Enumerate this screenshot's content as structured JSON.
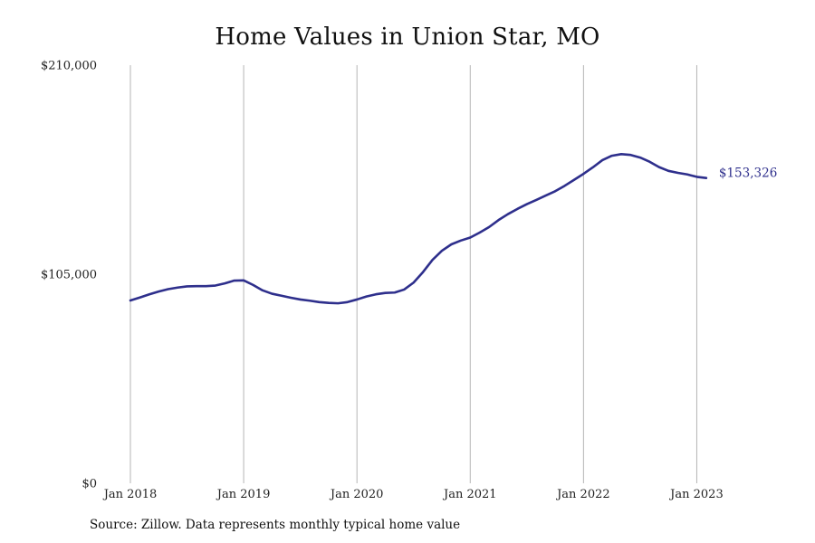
{
  "chart_data": {
    "type": "line",
    "title": "Home Values in Union Star, MO",
    "xlabel": "",
    "ylabel": "",
    "x_tick_labels": [
      "Jan 2018",
      "Jan 2019",
      "Jan 2020",
      "Jan 2021",
      "Jan 2022",
      "Jan 2023"
    ],
    "x_ticks": [
      "2018-01",
      "2019-01",
      "2020-01",
      "2021-01",
      "2022-01",
      "2023-01"
    ],
    "y_tick_labels": [
      "$0",
      "$105,000",
      "$210,000"
    ],
    "y_ticks": [
      0,
      105000,
      210000
    ],
    "ylim": [
      0,
      210000
    ],
    "xlim": [
      "2018-01",
      "2023-07"
    ],
    "grid": {
      "vertical": true,
      "horizontal": false
    },
    "line_color": "#2e2f8c",
    "gridline_color": "#b5b5b5",
    "end_label": "$153,326",
    "series": [
      {
        "x": [
          "2018-01",
          "2018-02",
          "2018-03",
          "2018-04",
          "2018-05",
          "2018-06",
          "2018-07",
          "2018-08",
          "2018-09",
          "2018-10",
          "2018-11",
          "2018-12",
          "2019-01",
          "2019-02",
          "2019-03",
          "2019-04",
          "2019-05",
          "2019-06",
          "2019-07",
          "2019-08",
          "2019-09",
          "2019-10",
          "2019-11",
          "2019-12",
          "2020-01",
          "2020-02",
          "2020-03",
          "2020-04",
          "2020-05",
          "2020-06",
          "2020-07",
          "2020-08",
          "2020-09",
          "2020-10",
          "2020-11",
          "2020-12",
          "2021-01",
          "2021-02",
          "2021-03",
          "2021-04",
          "2021-05",
          "2021-06",
          "2021-07",
          "2021-08",
          "2021-09",
          "2021-10",
          "2021-11",
          "2021-12",
          "2022-01",
          "2022-02",
          "2022-03",
          "2022-04",
          "2022-05",
          "2022-06",
          "2022-07",
          "2022-08",
          "2022-09",
          "2022-10",
          "2022-11",
          "2022-12",
          "2023-01",
          "2023-02"
        ],
        "values": [
          91800,
          93300,
          94900,
          96300,
          97500,
          98300,
          98900,
          99000,
          99000,
          99300,
          100400,
          101800,
          101900,
          99600,
          96900,
          95200,
          94200,
          93200,
          92300,
          91700,
          91000,
          90600,
          90400,
          91000,
          92300,
          93800,
          94900,
          95600,
          95800,
          97300,
          100800,
          106100,
          112200,
          116800,
          120000,
          121900,
          123400,
          125900,
          128700,
          132200,
          135200,
          137800,
          140200,
          142300,
          144500,
          146700,
          149400,
          152400,
          155400,
          158700,
          162300,
          164500,
          165300,
          164900,
          163600,
          161500,
          158800,
          156900,
          155900,
          155100,
          153900,
          153326
        ]
      }
    ]
  },
  "source_note": "Source: Zillow. Data represents monthly typical home value"
}
